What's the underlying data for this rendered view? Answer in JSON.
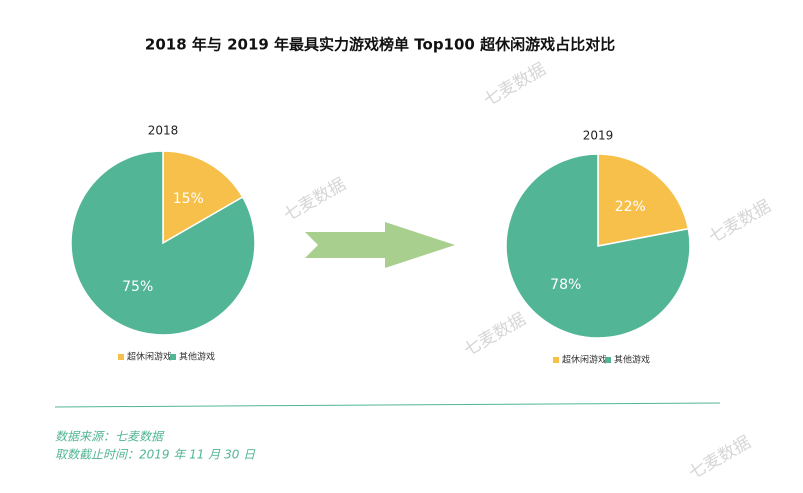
{
  "title": "2018 年与 2019 年最具实力游戏榜单 Top100 超休闲游戏占比对比",
  "chart_data": [
    {
      "type": "pie",
      "title": "2018",
      "categories": [
        "超休闲游戏",
        "其他游戏"
      ],
      "values": [
        15,
        75
      ],
      "value_labels": [
        "15%",
        "75%"
      ],
      "colors": [
        "#f7c04a",
        "#52b595"
      ]
    },
    {
      "type": "pie",
      "title": "2019",
      "categories": [
        "超休闲游戏",
        "其他游戏"
      ],
      "values": [
        22,
        78
      ],
      "value_labels": [
        "22%",
        "78%"
      ],
      "colors": [
        "#f7c04a",
        "#52b595"
      ]
    }
  ],
  "watermarks": [
    "七麦数据",
    "七麦数据",
    "七麦数据",
    "七麦数据",
    "七麦数据"
  ],
  "footer": [
    "数据来源：七麦数据",
    "取数截止时间：2019 年 11 月 30 日"
  ]
}
